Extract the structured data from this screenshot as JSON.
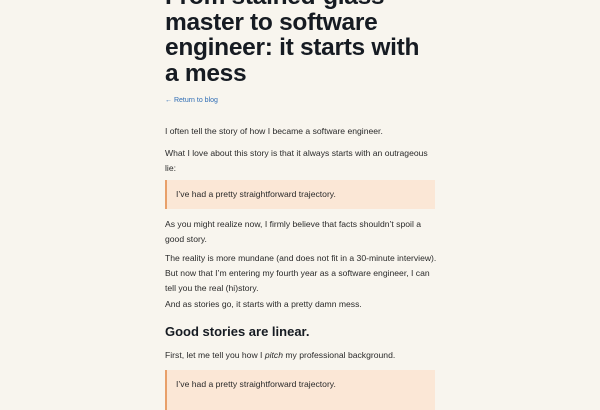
{
  "header": {
    "title": "From stained-glass master to software engineer: it starts with a mess",
    "back_link": "← Return to blog"
  },
  "content": {
    "p1": "I often tell the story of how I became a software engineer.",
    "p2": "What I love about this story is that it always starts with an outrageous lie:",
    "quote1": "I’ve had a pretty straightforward trajectory.",
    "p3": "As you might realize now, I firmly believe that facts shouldn’t spoil a good story.",
    "p4": "The reality is more mundane (and does not fit in a 30-minute interview). But now that I’m entering my fourth year as a software engineer, I can tell you the real (hi)story.",
    "p5": "And as stories go, it starts with a pretty damn mess.",
    "h2": "Good stories are linear.",
    "p6": [
      "First, let me tell you how I ",
      "pitch",
      " my professional background."
    ],
    "quote2": "I’ve had a pretty straightforward trajectory."
  }
}
